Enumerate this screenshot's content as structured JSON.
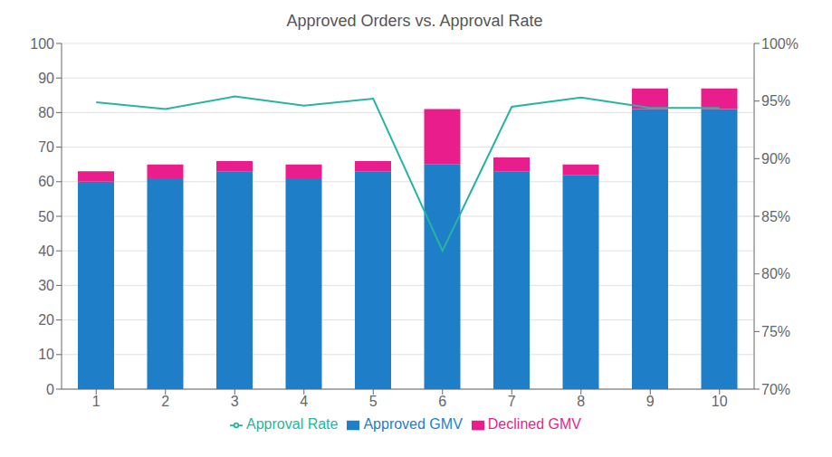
{
  "chart_data": {
    "type": "bar",
    "title": "Approved Orders vs. Approval Rate",
    "categories": [
      1,
      2,
      3,
      4,
      5,
      6,
      7,
      8,
      9,
      10
    ],
    "stacked": true,
    "series": [
      {
        "name": "Approved GMV",
        "color": "#1e7ec8",
        "values": [
          60,
          61,
          63,
          61,
          63,
          65,
          63,
          62,
          81,
          81
        ]
      },
      {
        "name": "Declined GMV",
        "color": "#e91e8c",
        "values": [
          3,
          4,
          3,
          4,
          3,
          16,
          4,
          3,
          6,
          6
        ]
      },
      {
        "name": "Approval Rate",
        "type": "line",
        "axis": "y2",
        "color": "#26b5a0",
        "values": [
          94.9,
          94.3,
          95.4,
          94.6,
          95.2,
          82.0,
          94.5,
          95.3,
          94.4,
          94.4
        ]
      }
    ],
    "ylim": [
      0,
      100
    ],
    "yticks": [
      0,
      10,
      20,
      30,
      40,
      50,
      60,
      70,
      80,
      90,
      100
    ],
    "y2lim": [
      70,
      100
    ],
    "y2ticks": [
      {
        "value": 70,
        "label": "70%"
      },
      {
        "value": 75,
        "label": "75%"
      },
      {
        "value": 80,
        "label": "80%"
      },
      {
        "value": 85,
        "label": "85%"
      },
      {
        "value": 90,
        "label": "90%"
      },
      {
        "value": 95,
        "label": "95%"
      },
      {
        "value": 100,
        "label": "100%"
      }
    ],
    "grid": true,
    "legend": "bottom"
  }
}
